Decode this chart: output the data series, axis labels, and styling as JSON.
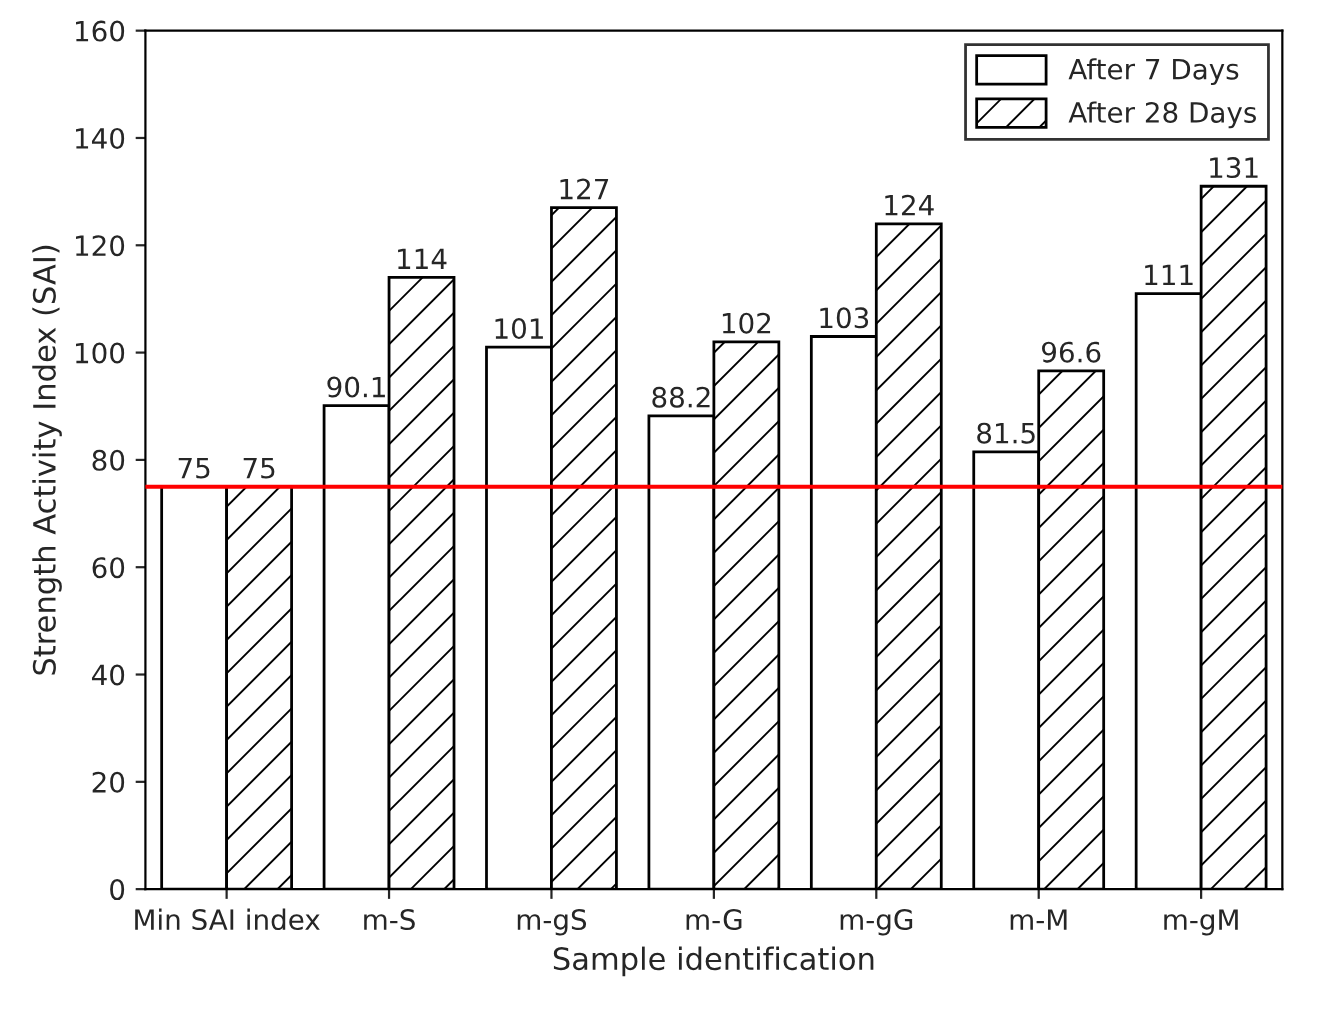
{
  "chart_data": {
    "type": "bar",
    "xlabel": "Sample identification",
    "ylabel": "Strength Activity Index (SAI)",
    "categories": [
      "Min SAI index",
      "m-S",
      "m-gS",
      "m-G",
      "m-gG",
      "m-M",
      "m-gM"
    ],
    "series": [
      {
        "name": "After 7 Days",
        "color": "#ffffff",
        "values": [
          75,
          90.1,
          101,
          88.2,
          103,
          81.5,
          111
        ]
      },
      {
        "name": "After 28 Days",
        "color": "#000000",
        "values": [
          75,
          114,
          127,
          102,
          124,
          96.6,
          131
        ]
      }
    ],
    "ylim": [
      0,
      160
    ],
    "yticks": [
      0,
      20,
      40,
      60,
      80,
      100,
      120,
      140,
      160
    ],
    "data_labels": true,
    "legend": "top right",
    "grid": false,
    "ref_lines": [
      {
        "axis": "y",
        "value": 75,
        "color": "#ff0000"
      }
    ]
  }
}
